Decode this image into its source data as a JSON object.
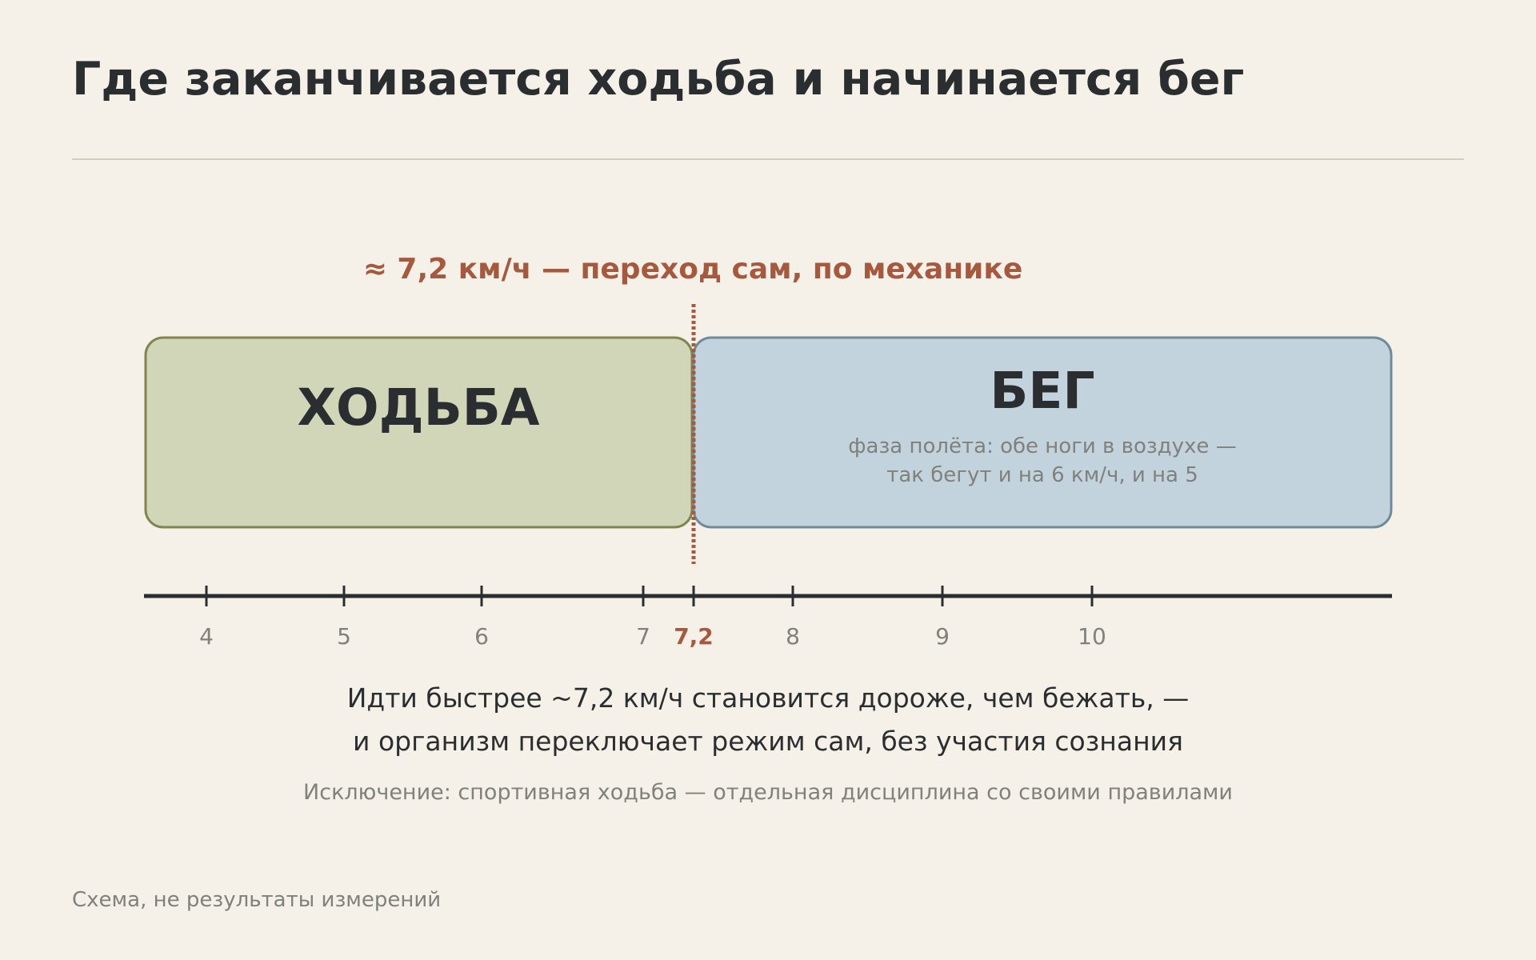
{
  "title": "Где заканчивается ходьба и начинается бег",
  "threshold": {
    "value": 7.2,
    "label": "≈ 7,2 км/ч — переход сам, по механике",
    "tick_label": "7,2"
  },
  "zones": {
    "walk": {
      "label": "ХОДЬБА",
      "fill": "#d0d6b7",
      "stroke": "#7e8550"
    },
    "run": {
      "label": "БЕГ",
      "note_line1": "фаза полёта: обе ноги в воздухе —",
      "note_line2": "так бегут и на 6 км/ч, и на 5",
      "fill": "#c3d3dd",
      "stroke": "#6f8b9b"
    }
  },
  "axis": {
    "ticks": [
      {
        "value": 4,
        "label": "4"
      },
      {
        "value": 5,
        "label": "5"
      },
      {
        "value": 6,
        "label": "6"
      },
      {
        "value": 7,
        "label": "7"
      },
      {
        "value": 8,
        "label": "8"
      },
      {
        "value": 9,
        "label": "9"
      },
      {
        "value": 10,
        "label": "10"
      }
    ]
  },
  "explanation": {
    "line1": "Идти быстрее ~7,2 км/ч становится дороже, чем бежать, —",
    "line2": "и организм переключает режим сам, без участия сознания"
  },
  "exception": "Исключение: спортивная ходьба — отдельная дисциплина со своими правилами",
  "footnote": "Схема, не результаты измерений",
  "colors": {
    "accent": "#a55a40",
    "text": "#2b2e30",
    "muted": "#80817c",
    "background": "#f6f1e8"
  }
}
